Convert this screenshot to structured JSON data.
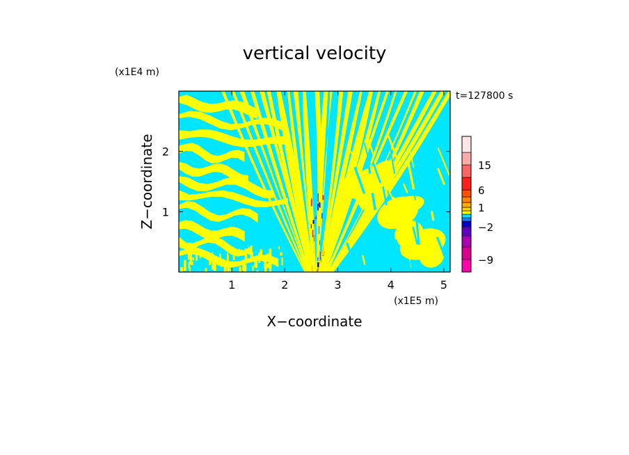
{
  "chart_data": {
    "type": "heatmap",
    "title": "vertical velocity",
    "xlabel": "X−coordinate",
    "ylabel": "Z−coordinate",
    "x_scale_label": "(x1E5 m)",
    "y_scale_label": "(x1E4 m)",
    "time_label": "t=127800 s",
    "xlim": [
      0,
      5.12
    ],
    "ylim": [
      0,
      3.0
    ],
    "x_ticks": [
      1,
      2,
      3,
      4,
      5
    ],
    "x_tick_labels": [
      "1",
      "2",
      "3",
      "4",
      "5"
    ],
    "y_ticks": [
      1,
      2
    ],
    "y_tick_labels": [
      "1",
      "2"
    ],
    "colorbar": {
      "levels": [
        {
          "min": -12,
          "max": -9,
          "color": "#ff00aa"
        },
        {
          "min": -9,
          "max": -6,
          "color": "#d8008c"
        },
        {
          "min": -6,
          "max": -4,
          "color": "#aa00b4"
        },
        {
          "min": -4,
          "max": -2,
          "color": "#6000c0"
        },
        {
          "min": -2,
          "max": -1,
          "color": "#0000cc"
        },
        {
          "min": -1,
          "max": -0.5,
          "color": "#1e78ff"
        },
        {
          "min": -0.5,
          "max": 0,
          "color": "#00e6ff"
        },
        {
          "min": 0,
          "max": 0.5,
          "color": "#ffff00"
        },
        {
          "min": 0.5,
          "max": 1,
          "color": "#ffd200"
        },
        {
          "min": 1,
          "max": 2,
          "color": "#ffaa00"
        },
        {
          "min": 2,
          "max": 4,
          "color": "#ff8200"
        },
        {
          "min": 4,
          "max": 6,
          "color": "#ff5000"
        },
        {
          "min": 6,
          "max": 10,
          "color": "#ff1e1e"
        },
        {
          "min": 10,
          "max": 15,
          "color": "#ff6464"
        },
        {
          "min": 15,
          "max": 20,
          "color": "#ffaaaa"
        },
        {
          "min": 20,
          "max": 30,
          "color": "#ffe6e6"
        }
      ],
      "tick_labels": [
        {
          "value": 15,
          "label": "15"
        },
        {
          "value": 6,
          "label": "6"
        },
        {
          "value": 1,
          "label": "1"
        },
        {
          "value": -2,
          "label": "−2"
        },
        {
          "value": -9,
          "label": "−9"
        }
      ]
    },
    "dominant_colors": {
      "positive": "#ffff00",
      "negative": "#00e6ff"
    },
    "grid": false,
    "legend": "colorbar at right"
  }
}
